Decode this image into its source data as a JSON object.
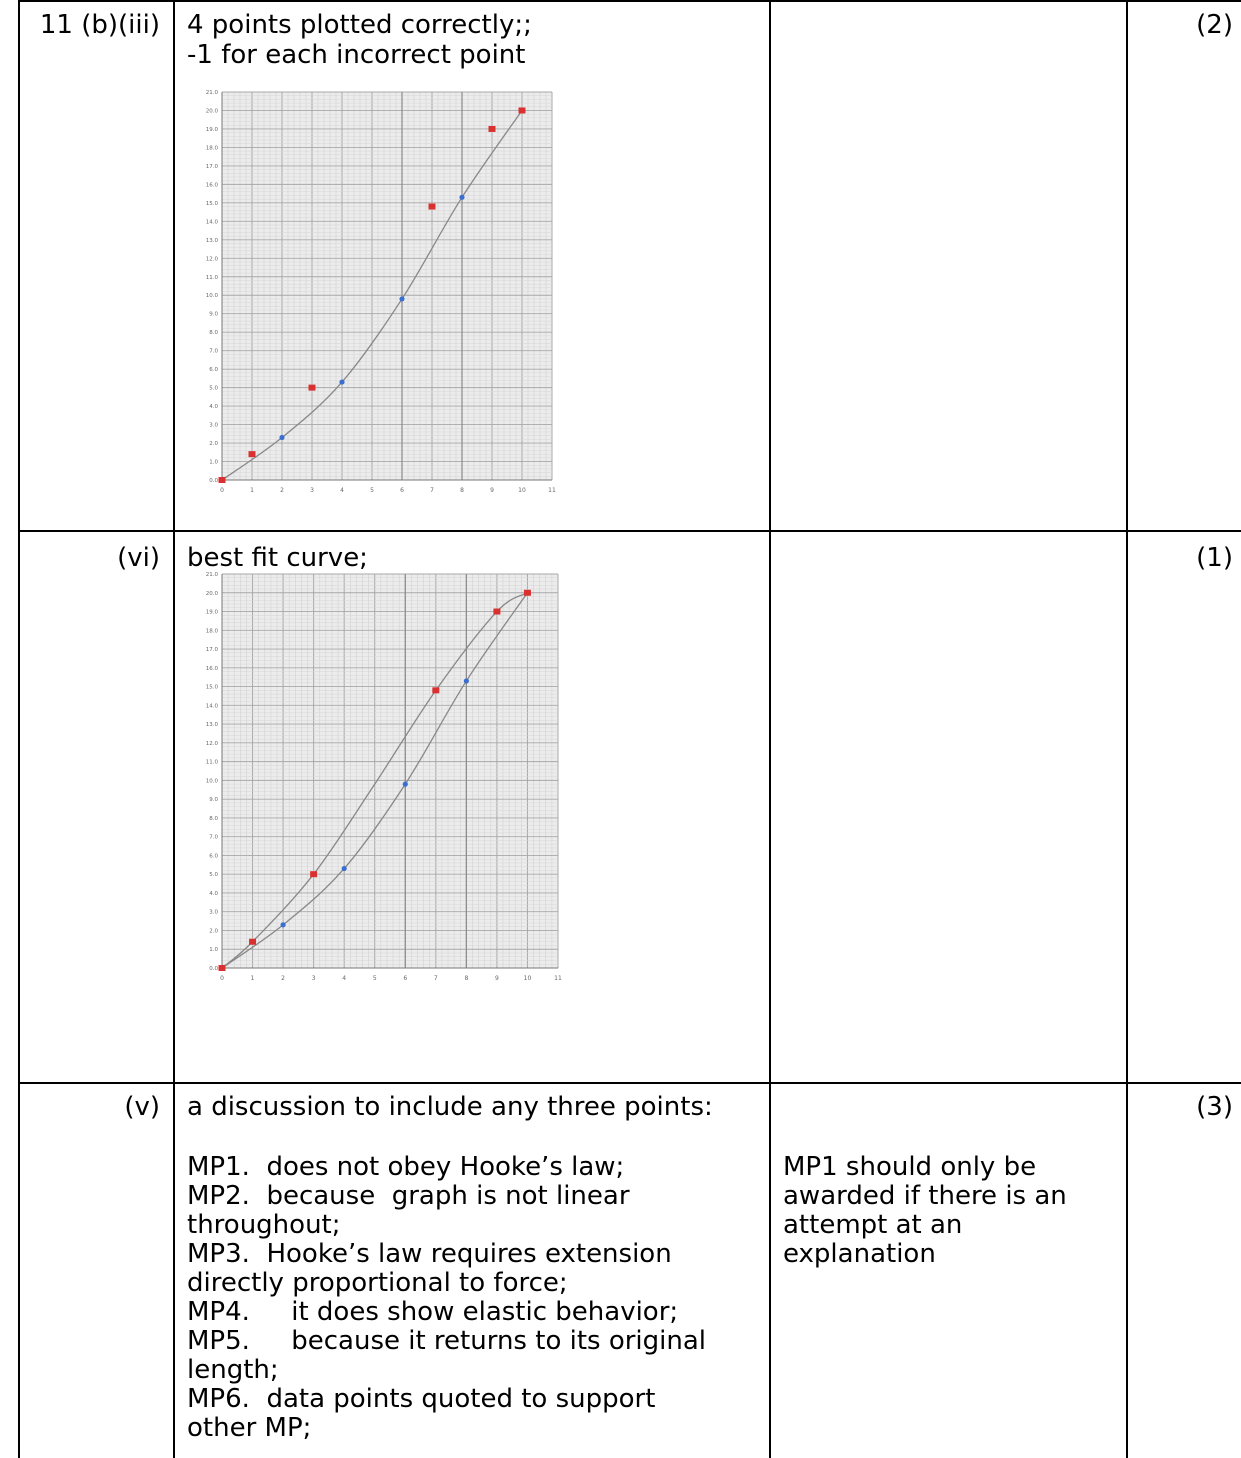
{
  "rows": [
    {
      "question": "11 (b)(iii)",
      "answer_lines": [
        "4 points plotted correctly;;",
        "-1 for each incorrect point"
      ],
      "mark": "(2)"
    },
    {
      "question": "(vi)",
      "answer_lines": [
        "best fit curve;"
      ],
      "mark": "(1)"
    },
    {
      "question": "(v)",
      "intro": "a discussion to include any three points:",
      "points": [
        "MP1.  does not obey Hooke’s law;",
        "MP2.  because  graph is not linear",
        "throughout;",
        "MP3.  Hooke’s law requires extension",
        "directly proportional to force;",
        "MP4.     it does show elastic behavior;",
        "MP5.     because it returns to its original",
        "length;",
        "MP6.  data points quoted to support",
        "other MP;"
      ],
      "note_lines": [
        "MP1 should only be",
        "awarded if there is an",
        "attempt at an",
        "explanation"
      ],
      "mark": "(3)"
    }
  ],
  "chart_data": [
    {
      "type": "scatter",
      "xlim": [
        0,
        11
      ],
      "ylim": [
        0,
        21
      ],
      "x_ticks": [
        0,
        1,
        2,
        3,
        4,
        5,
        6,
        7,
        8,
        9,
        10,
        11
      ],
      "y_ticks": [
        0,
        1,
        2,
        3,
        4,
        5,
        6,
        7,
        8,
        9,
        10,
        11,
        12,
        13,
        14,
        15,
        16,
        17,
        18,
        19,
        20,
        21
      ],
      "series": [
        {
          "color": "#d93030",
          "marker": "square",
          "points": [
            [
              0,
              0
            ],
            [
              1,
              1.4
            ],
            [
              3,
              5
            ],
            [
              7,
              14.8
            ],
            [
              9,
              19
            ],
            [
              10,
              20
            ]
          ]
        },
        {
          "color": "#3a6fd0",
          "marker": "dot",
          "points": [
            [
              2,
              2.3
            ],
            [
              4,
              5.3
            ],
            [
              6,
              9.8
            ],
            [
              8,
              15.3
            ]
          ]
        }
      ],
      "curves": [
        {
          "color": "#888888",
          "points": [
            [
              0,
              0
            ],
            [
              2,
              2.3
            ],
            [
              4,
              5.3
            ],
            [
              6,
              9.8
            ],
            [
              8,
              15.3
            ],
            [
              10,
              20
            ]
          ]
        }
      ],
      "grid": true
    },
    {
      "type": "scatter",
      "xlim": [
        0,
        11
      ],
      "ylim": [
        0,
        21
      ],
      "x_ticks": [
        0,
        1,
        2,
        3,
        4,
        5,
        6,
        7,
        8,
        9,
        10,
        11
      ],
      "y_ticks": [
        0,
        1,
        2,
        3,
        4,
        5,
        6,
        7,
        8,
        9,
        10,
        11,
        12,
        13,
        14,
        15,
        16,
        17,
        18,
        19,
        20,
        21
      ],
      "series": [
        {
          "color": "#d93030",
          "marker": "square",
          "points": [
            [
              0,
              0
            ],
            [
              1,
              1.4
            ],
            [
              3,
              5
            ],
            [
              7,
              14.8
            ],
            [
              9,
              19
            ],
            [
              10,
              20
            ]
          ]
        },
        {
          "color": "#3a6fd0",
          "marker": "dot",
          "points": [
            [
              2,
              2.3
            ],
            [
              4,
              5.3
            ],
            [
              6,
              9.8
            ],
            [
              8,
              15.3
            ]
          ]
        }
      ],
      "curves": [
        {
          "color": "#888888",
          "points": [
            [
              0,
              0
            ],
            [
              1,
              1.4
            ],
            [
              3,
              5
            ],
            [
              5,
              9.8
            ],
            [
              7,
              14.8
            ],
            [
              9,
              19
            ],
            [
              10,
              20
            ]
          ]
        },
        {
          "color": "#888888",
          "points": [
            [
              0,
              0
            ],
            [
              2,
              2.3
            ],
            [
              4,
              5.3
            ],
            [
              6,
              9.8
            ],
            [
              8,
              15.3
            ],
            [
              10,
              20
            ]
          ]
        }
      ],
      "grid": true
    }
  ]
}
